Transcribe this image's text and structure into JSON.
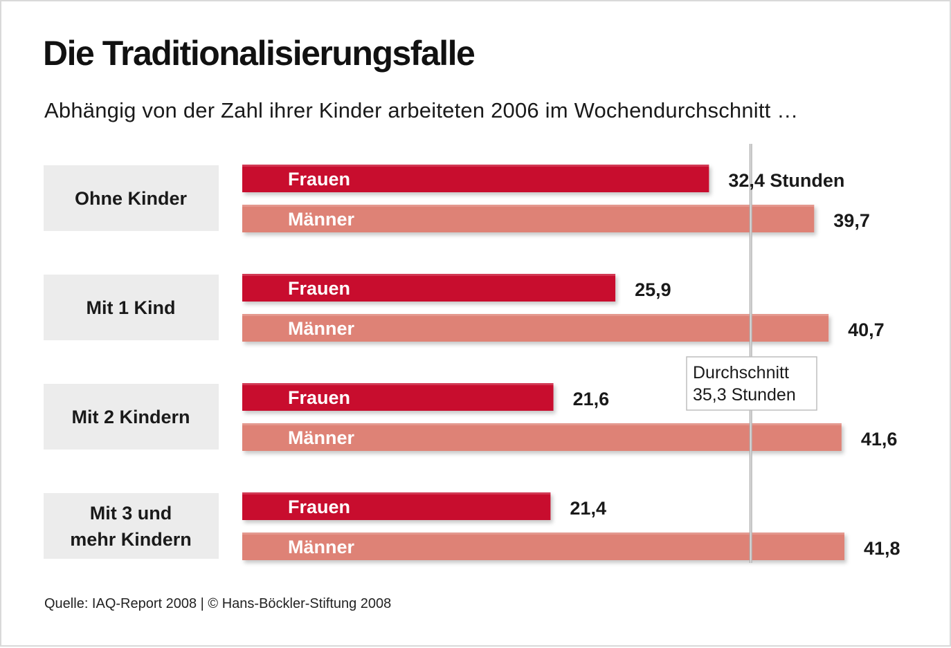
{
  "title": "Die Traditionalisierungsfalle",
  "subtitle": "Abhängig von der Zahl ihrer Kinder arbeiteten 2006 im Wochendurchschnitt …",
  "source": "Quelle: IAQ-Report 2008 | © Hans-Böckler-Stiftung 2008",
  "chart_data": {
    "type": "bar",
    "orientation": "horizontal",
    "title": "Die Traditionalisierungsfalle",
    "subtitle": "Abhängig von der Zahl ihrer Kinder arbeiteten 2006 im Wochendurchschnitt …",
    "unit": "Stunden",
    "categories": [
      "Ohne Kinder",
      "Mit 1 Kind",
      "Mit 2 Kindern",
      "Mit 3 und mehr Kindern"
    ],
    "series": [
      {
        "name": "Frauen",
        "color": "#c8102e",
        "values": [
          32.4,
          25.9,
          21.6,
          21.4
        ],
        "labels": [
          "32,4 Stunden",
          "25,9",
          "21,6",
          "21,4"
        ]
      },
      {
        "name": "Männer",
        "color": "#de8276",
        "values": [
          39.7,
          40.7,
          41.6,
          41.8
        ],
        "labels": [
          "39,7",
          "40,7",
          "41,6",
          "41,8"
        ]
      }
    ],
    "reference_line": {
      "value": 35.3,
      "label_line1": "Durchschnitt",
      "label_line2": "35,3 Stunden"
    },
    "xlim": [
      0,
      41.8
    ],
    "grid": false,
    "legend": "none"
  }
}
